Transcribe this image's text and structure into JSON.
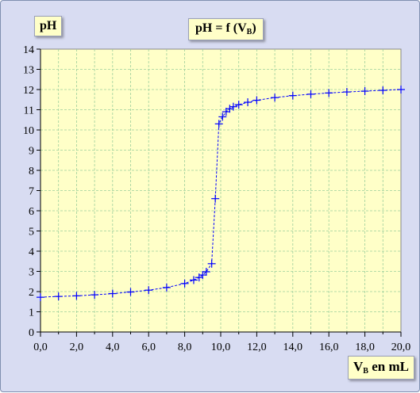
{
  "labels": {
    "ylabel": "pH",
    "title_main": "pH = f (V",
    "title_sub": "B",
    "title_end": ")",
    "xlabel_main": "V",
    "xlabel_sub": "B",
    "xlabel_end": " en mL"
  },
  "chart_data": {
    "type": "line",
    "title": "pH = f (VB)",
    "xlabel": "VB en mL",
    "ylabel": "pH",
    "xlim": [
      0,
      20
    ],
    "ylim": [
      0,
      14
    ],
    "grid": true,
    "x_ticks": [
      "0,0",
      "2,0",
      "4,0",
      "6,0",
      "8,0",
      "10,0",
      "12,0",
      "14,0",
      "16,0",
      "18,0",
      "20,0"
    ],
    "y_ticks": [
      "0",
      "1",
      "2",
      "3",
      "4",
      "5",
      "6",
      "7",
      "8",
      "9",
      "10",
      "11",
      "12",
      "13",
      "14"
    ],
    "series": [
      {
        "color": "#0000ff",
        "marker": "plus",
        "line_style": "dashed",
        "x": [
          0,
          1,
          2,
          3,
          4,
          5,
          6,
          7,
          8,
          8.5,
          8.8,
          9,
          9.2,
          9.5,
          9.7,
          9.9,
          10.1,
          10.3,
          10.5,
          10.7,
          11,
          11.5,
          12,
          13,
          14,
          15,
          16,
          17,
          18,
          19,
          20
        ],
        "y": [
          1.72,
          1.76,
          1.79,
          1.84,
          1.9,
          1.98,
          2.07,
          2.2,
          2.4,
          2.57,
          2.7,
          2.82,
          2.98,
          3.38,
          6.6,
          10.3,
          10.65,
          10.9,
          11.05,
          11.15,
          11.25,
          11.37,
          11.47,
          11.6,
          11.7,
          11.77,
          11.83,
          11.88,
          11.92,
          11.96,
          12.0
        ]
      }
    ]
  }
}
